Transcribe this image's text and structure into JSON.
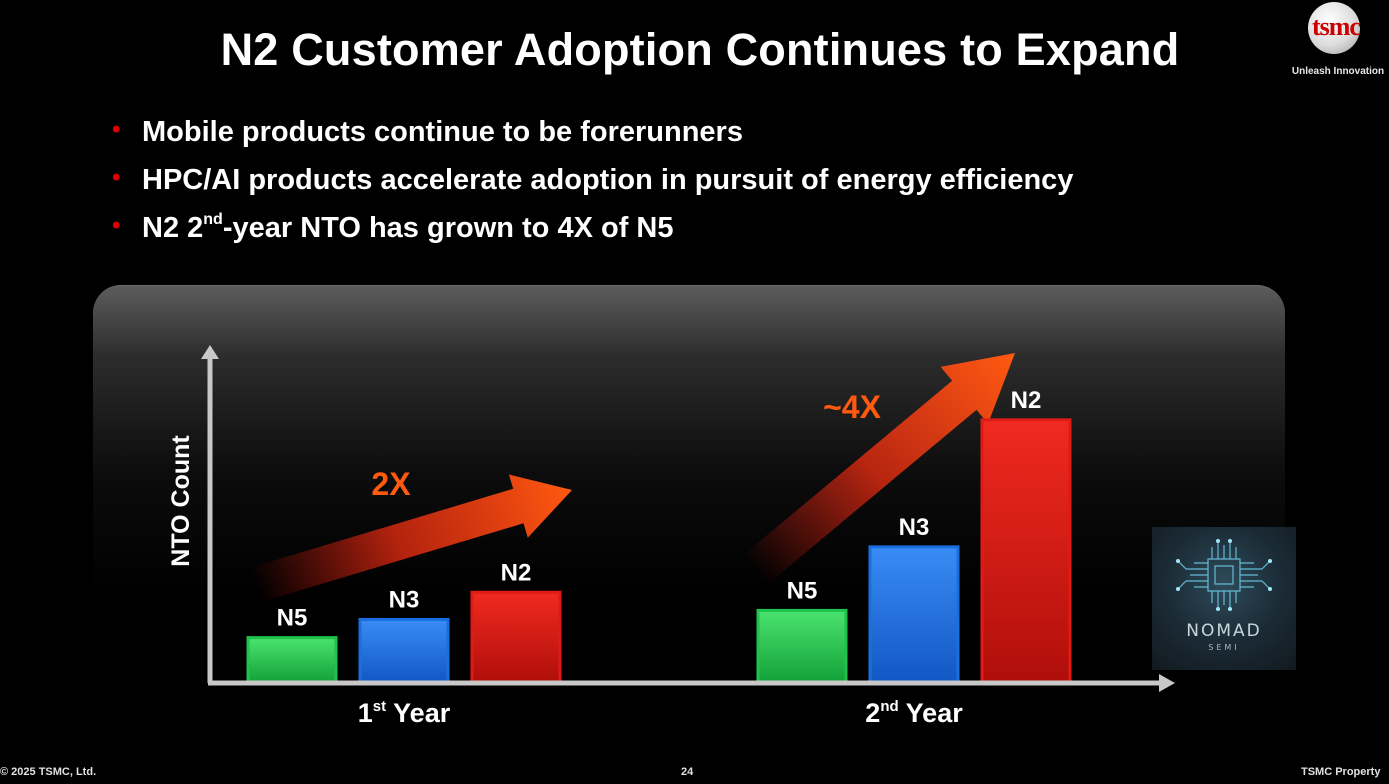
{
  "slide": {
    "title": "N2 Customer Adoption Continues to Expand",
    "bullets": [
      {
        "text": "Mobile products continue to be forerunners"
      },
      {
        "text": "HPC/AI products accelerate adoption in pursuit of energy efficiency"
      },
      {
        "pre": "N2 2",
        "sup": "nd",
        "post": "-year NTO has grown to 4X of N5"
      }
    ]
  },
  "logo": {
    "wordmark": "tsmc",
    "tagline": "Unleash Innovation"
  },
  "footer": {
    "copyright": "© 2025 TSMC, Ltd.",
    "page_number": "24",
    "property": "TSMC Property"
  },
  "watermark": {
    "name": "NOMAD",
    "sub": "SEMI"
  },
  "colors": {
    "n5": "#1fc24a",
    "n3": "#1a6fe0",
    "n2": "#e01a14",
    "arrow": "#ff5a10",
    "axis": "#c8c8c8",
    "bullet": "#e00000"
  },
  "chart_data": {
    "type": "bar",
    "ylabel": "NTO Count",
    "yticks_shown": false,
    "groups": [
      {
        "pre": "1",
        "sup": "st",
        "post": " Year",
        "bars": [
          {
            "label": "N5",
            "value": 1.0
          },
          {
            "label": "N3",
            "value": 1.4
          },
          {
            "label": "N2",
            "value": 2.0
          }
        ]
      },
      {
        "pre": "2",
        "sup": "nd",
        "post": " Year",
        "bars": [
          {
            "label": "N5",
            "value": 1.6
          },
          {
            "label": "N3",
            "value": 3.0
          },
          {
            "label": "N2",
            "value": 5.8
          }
        ]
      }
    ],
    "annotations": [
      {
        "text": "2X",
        "group": 0
      },
      {
        "text": "~4X",
        "group": 1
      }
    ],
    "ylim": [
      0,
      8
    ]
  }
}
